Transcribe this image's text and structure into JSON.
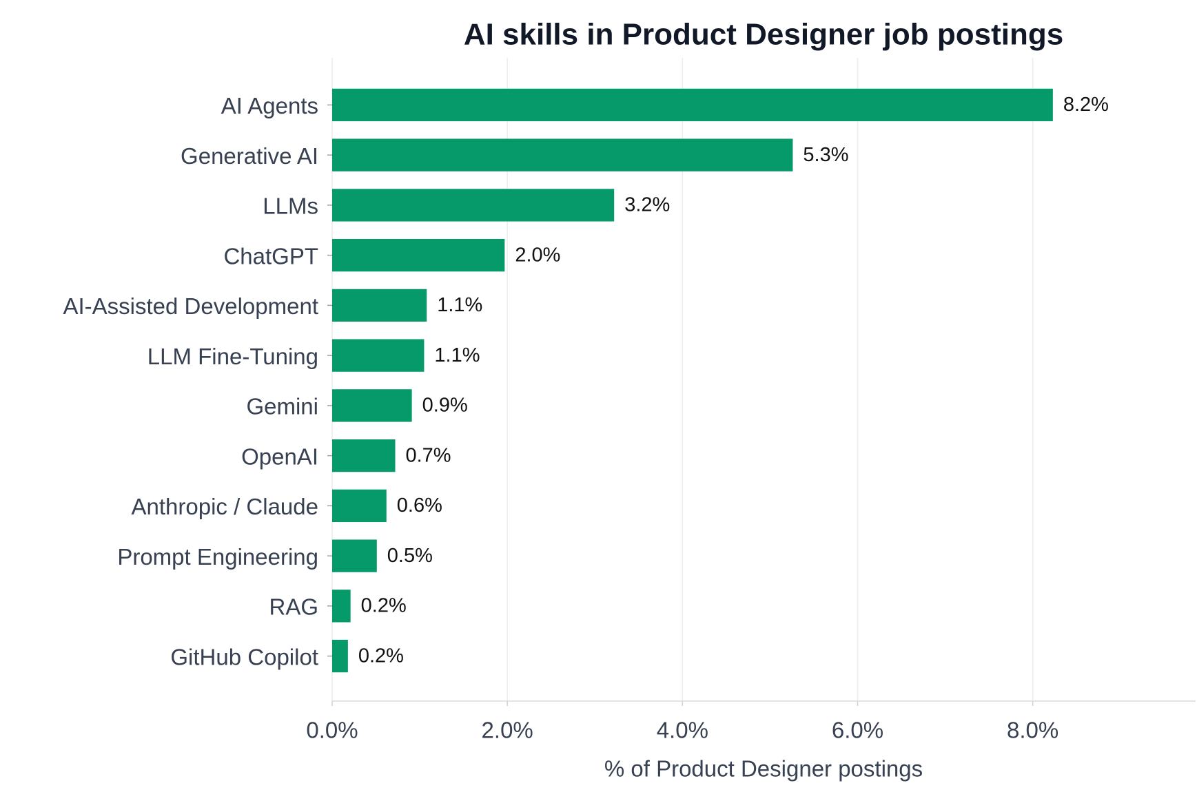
{
  "chart_data": {
    "type": "barh",
    "title": "AI skills in Product Designer job postings",
    "x_label": "% of Product Designer postings",
    "categories": [
      "AI Agents",
      "Generative AI",
      "LLMs",
      "ChatGPT",
      "AI-Assisted Development",
      "LLM Fine-Tuning",
      "Gemini",
      "OpenAI",
      "Anthropic / Claude",
      "Prompt Engineering",
      "RAG",
      "GitHub Copilot"
    ],
    "values": [
      8.23,
      5.26,
      3.22,
      1.97,
      1.08,
      1.05,
      0.91,
      0.72,
      0.62,
      0.51,
      0.21,
      0.18
    ],
    "value_labels": [
      "8.2%",
      "5.3%",
      "3.2%",
      "2.0%",
      "1.1%",
      "1.1%",
      "0.9%",
      "0.7%",
      "0.6%",
      "0.5%",
      "0.2%",
      "0.2%"
    ],
    "color": "#069a6b",
    "xlim": [
      0,
      9.86
    ],
    "xticks": [
      {
        "value": 0,
        "label": "0.0%"
      },
      {
        "value": 2,
        "label": "2.0%"
      },
      {
        "value": 4,
        "label": "4.0%"
      },
      {
        "value": 6,
        "label": "6.0%"
      },
      {
        "value": 8,
        "label": "8.0%"
      }
    ],
    "grid": true
  }
}
